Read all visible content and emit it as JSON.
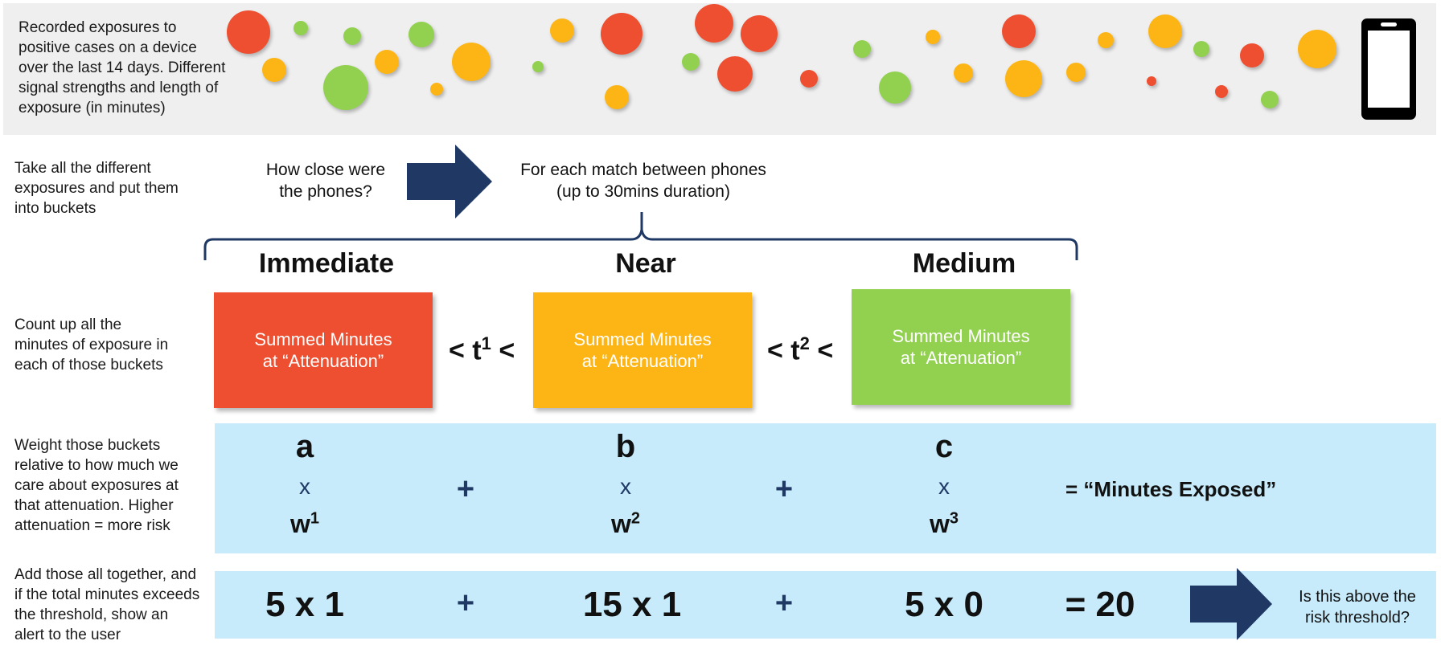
{
  "row1": {
    "text": [
      "Recorded exposures to",
      "positive cases on a device",
      "over the last 14 days. Different",
      "signal strengths and length of",
      "exposure (in minutes)"
    ],
    "dot_colors": {
      "red": "#ee4f31",
      "orange": "#fdb515",
      "green": "#92d050"
    },
    "phone_icon": "phone-icon"
  },
  "row2": {
    "text": [
      "Take all the different",
      "exposures and put them",
      "into buckets"
    ],
    "question": [
      "How close were",
      "the phones?"
    ],
    "match": [
      "For each match between phones",
      "(up to 30mins duration)"
    ]
  },
  "buckets": [
    {
      "title": "Immediate",
      "line1": "Summed Minutes",
      "line2": "at “Attenuation”",
      "color": "#ee4f31"
    },
    {
      "title": "Near",
      "line1": "Summed Minutes",
      "line2": "at “Attenuation”",
      "color": "#fdb515"
    },
    {
      "title": "Medium",
      "line1": "Summed Minutes",
      "line2": "at “Attenuation”",
      "color": "#92d050"
    }
  ],
  "row3": {
    "text": [
      "Count up all the",
      "minutes of exposure in",
      "each of those buckets"
    ],
    "thresholds": [
      {
        "base": "< t",
        "sup": "1",
        "end": " <"
      },
      {
        "base": "< t",
        "sup": "2",
        "end": " <"
      }
    ]
  },
  "row4": {
    "text": [
      "Weight those buckets",
      "relative to how much we",
      "care about exposures at",
      "that attenuation. Higher",
      "attenuation = more risk"
    ],
    "terms": [
      {
        "letter": "a",
        "times": "x",
        "w": "w",
        "sup": "1"
      },
      {
        "letter": "b",
        "times": "x",
        "w": "w",
        "sup": "2"
      },
      {
        "letter": "c",
        "times": "x",
        "w": "w",
        "sup": "3"
      }
    ],
    "plus": "+",
    "result": "= “Minutes Exposed”"
  },
  "row5": {
    "text": [
      "Add those all together, and",
      "if the total minutes exceeds",
      "the threshold, show an",
      "alert to the user"
    ],
    "exprs": [
      "5 x 1",
      "15 x 1",
      "5 x 0"
    ],
    "plus": "+",
    "total": "= 20",
    "question": [
      "Is this above the",
      "risk threshold?"
    ]
  },
  "colors": {
    "band": "#c7ebfb",
    "arrow": "#1f3864",
    "bracket": "#1f3864"
  }
}
